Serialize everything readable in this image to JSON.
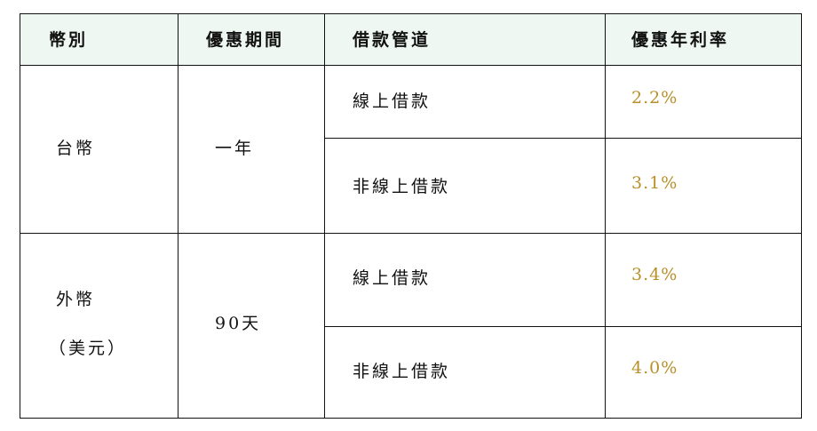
{
  "table": {
    "headers": [
      "幣別",
      "優惠期間",
      "借款管道",
      "優惠年利率"
    ],
    "groups": [
      {
        "currency": "台幣",
        "currency_note": "",
        "period": "一年",
        "rows": [
          {
            "channel": "線上借款",
            "rate": "2.2%"
          },
          {
            "channel": "非線上借款",
            "rate": "3.1%"
          }
        ]
      },
      {
        "currency": "外幣",
        "currency_note": "（美元）",
        "period": "90天",
        "rows": [
          {
            "channel": "線上借款",
            "rate": "3.4%"
          },
          {
            "channel": "非線上借款",
            "rate": "4.0%"
          }
        ]
      }
    ],
    "colors": {
      "header_bg": "#eef7f2",
      "rate_text": "#b8902a",
      "border": "#111111"
    }
  }
}
